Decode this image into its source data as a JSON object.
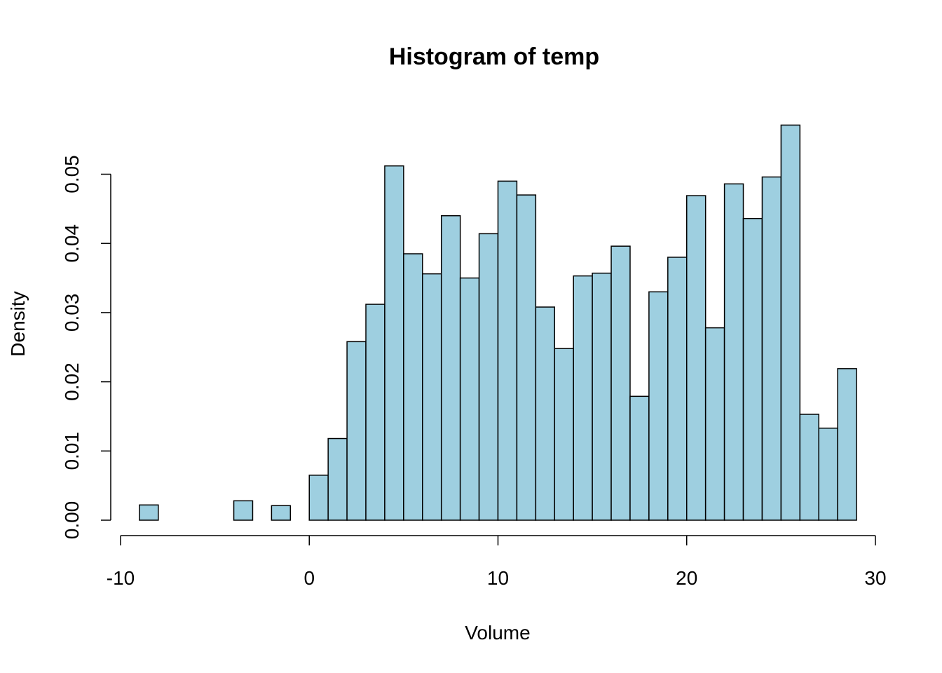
{
  "chart_data": {
    "type": "bar",
    "title": "Histogram of temp",
    "xlabel": "Volume",
    "ylabel": "Density",
    "bar_color": "#9ecfe0",
    "border_color": "#000000",
    "xlim": [
      -10,
      30
    ],
    "ylim": [
      0,
      0.057
    ],
    "x_ticks": [
      -10,
      0,
      10,
      20,
      30
    ],
    "x_tick_labels": [
      "-10",
      "0",
      "10",
      "20",
      "30"
    ],
    "y_ticks": [
      0,
      0.01,
      0.02,
      0.03,
      0.04,
      0.05
    ],
    "y_tick_labels": [
      "0.00",
      "0.01",
      "0.02",
      "0.03",
      "0.04",
      "0.05"
    ],
    "bin_width": 1,
    "bins": [
      {
        "x0": -9,
        "x1": -8,
        "density": 0.0022
      },
      {
        "x0": -8,
        "x1": -7,
        "density": 0
      },
      {
        "x0": -7,
        "x1": -6,
        "density": 0
      },
      {
        "x0": -6,
        "x1": -5,
        "density": 0
      },
      {
        "x0": -5,
        "x1": -4,
        "density": 0
      },
      {
        "x0": -4,
        "x1": -3,
        "density": 0.0028
      },
      {
        "x0": -3,
        "x1": -2,
        "density": 0
      },
      {
        "x0": -2,
        "x1": -1,
        "density": 0.0021
      },
      {
        "x0": -1,
        "x1": 0,
        "density": 0
      },
      {
        "x0": 0,
        "x1": 1,
        "density": 0.0065
      },
      {
        "x0": 1,
        "x1": 2,
        "density": 0.0118
      },
      {
        "x0": 2,
        "x1": 3,
        "density": 0.0258
      },
      {
        "x0": 3,
        "x1": 4,
        "density": 0.0312
      },
      {
        "x0": 4,
        "x1": 5,
        "density": 0.0512
      },
      {
        "x0": 5,
        "x1": 6,
        "density": 0.0385
      },
      {
        "x0": 6,
        "x1": 7,
        "density": 0.0356
      },
      {
        "x0": 7,
        "x1": 8,
        "density": 0.044
      },
      {
        "x0": 8,
        "x1": 9,
        "density": 0.035
      },
      {
        "x0": 9,
        "x1": 10,
        "density": 0.0414
      },
      {
        "x0": 10,
        "x1": 11,
        "density": 0.049
      },
      {
        "x0": 11,
        "x1": 12,
        "density": 0.047
      },
      {
        "x0": 12,
        "x1": 13,
        "density": 0.0308
      },
      {
        "x0": 13,
        "x1": 14,
        "density": 0.0248
      },
      {
        "x0": 14,
        "x1": 15,
        "density": 0.0353
      },
      {
        "x0": 15,
        "x1": 16,
        "density": 0.0357
      },
      {
        "x0": 16,
        "x1": 17,
        "density": 0.0396
      },
      {
        "x0": 17,
        "x1": 18,
        "density": 0.0179
      },
      {
        "x0": 18,
        "x1": 19,
        "density": 0.033
      },
      {
        "x0": 19,
        "x1": 20,
        "density": 0.038
      },
      {
        "x0": 20,
        "x1": 21,
        "density": 0.0469
      },
      {
        "x0": 21,
        "x1": 22,
        "density": 0.0278
      },
      {
        "x0": 22,
        "x1": 23,
        "density": 0.0486
      },
      {
        "x0": 23,
        "x1": 24,
        "density": 0.0436
      },
      {
        "x0": 24,
        "x1": 25,
        "density": 0.0496
      },
      {
        "x0": 25,
        "x1": 26,
        "density": 0.0571
      },
      {
        "x0": 26,
        "x1": 27,
        "density": 0.0153
      },
      {
        "x0": 27,
        "x1": 28,
        "density": 0.0133
      },
      {
        "x0": 28,
        "x1": 29,
        "density": 0.0219
      }
    ]
  }
}
